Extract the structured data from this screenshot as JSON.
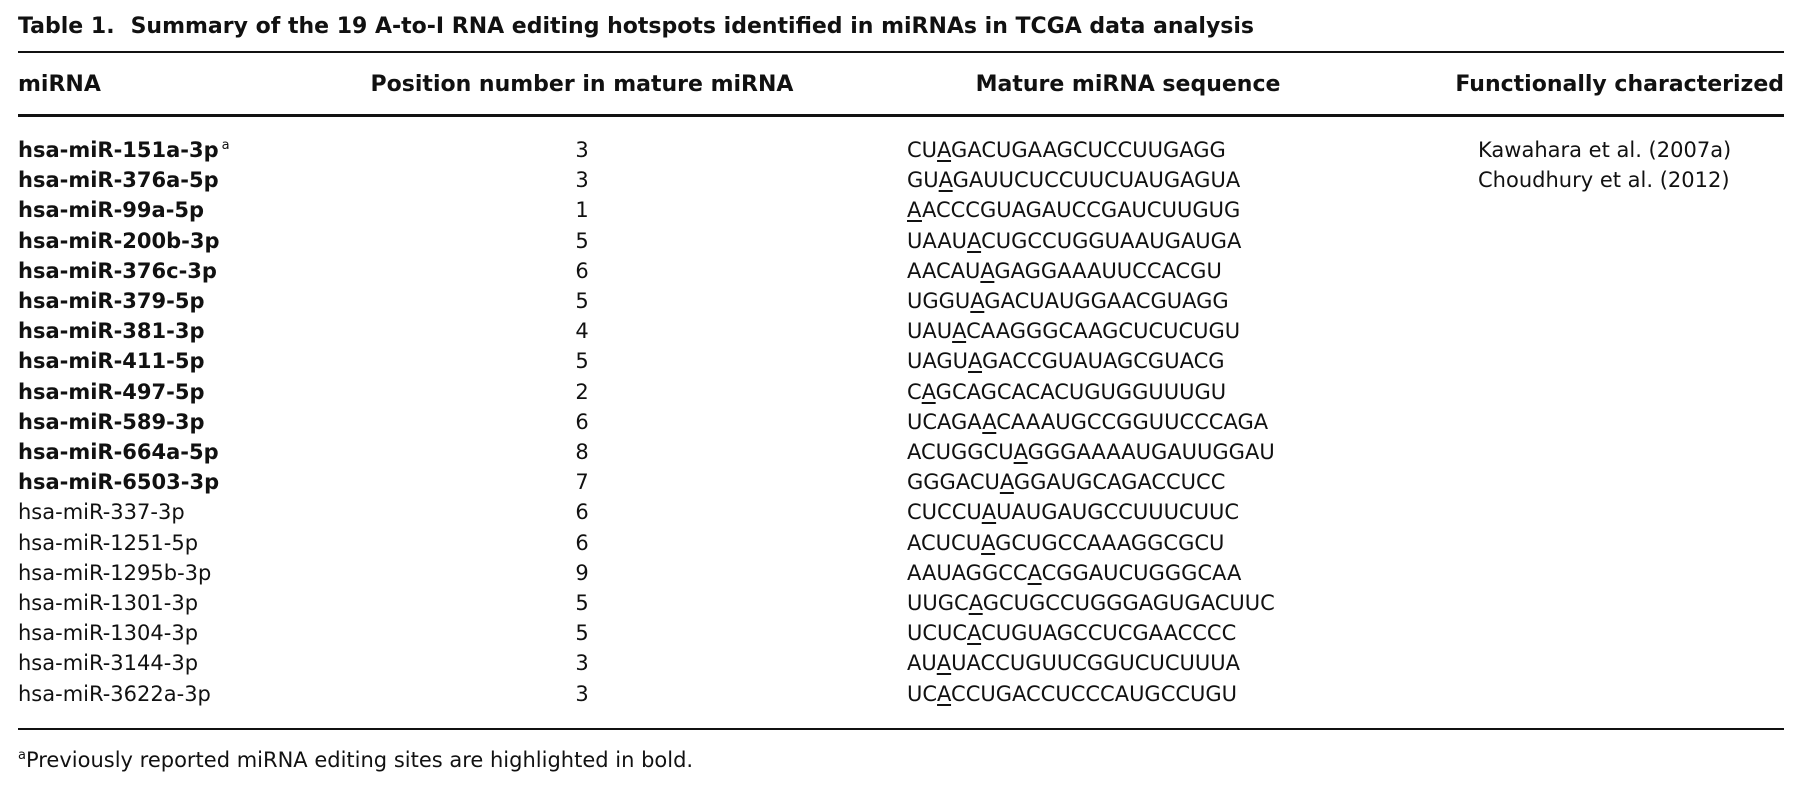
{
  "caption": {
    "label": "Table 1.",
    "title": "Summary of the 19 A-to-I RNA editing hotspots identified in miRNAs in TCGA data analysis"
  },
  "table": {
    "columns": [
      "miRNA",
      "Position number in mature miRNA",
      "Mature miRNA sequence",
      "Functionally characterized"
    ],
    "rows": [
      {
        "mirna": "hsa-miR-151a-3p",
        "note": "a",
        "bold": true,
        "position": 3,
        "sequence": "CUAGACUGAAGCUCCUUGAGG",
        "reference": "Kawahara et al. (2007a)"
      },
      {
        "mirna": "hsa-miR-376a-5p",
        "bold": true,
        "position": 3,
        "sequence": "GUAGAUUCUCCUUCUAUGAGUA",
        "reference": "Choudhury et al. (2012)"
      },
      {
        "mirna": "hsa-miR-99a-5p",
        "bold": true,
        "position": 1,
        "sequence": "AACCCGUAGAUCCGAUCUUGUG"
      },
      {
        "mirna": "hsa-miR-200b-3p",
        "bold": true,
        "position": 5,
        "sequence": "UAAUACUGCCUGGUAAUGAUGA"
      },
      {
        "mirna": "hsa-miR-376c-3p",
        "bold": true,
        "position": 6,
        "sequence": "AACAUAGAGGAAAUUCCACGU"
      },
      {
        "mirna": "hsa-miR-379-5p",
        "bold": true,
        "position": 5,
        "sequence": "UGGUAGACUAUGGAACGUAGG"
      },
      {
        "mirna": "hsa-miR-381-3p",
        "bold": true,
        "position": 4,
        "sequence": "UAUACAAGGGCAAGCUCUCUGU"
      },
      {
        "mirna": "hsa-miR-411-5p",
        "bold": true,
        "position": 5,
        "sequence": "UAGUAGACCGUAUAGCGUACG"
      },
      {
        "mirna": "hsa-miR-497-5p",
        "bold": true,
        "position": 2,
        "sequence": "CAGCAGCACACUGUGGUUUGU"
      },
      {
        "mirna": "hsa-miR-589-3p",
        "bold": true,
        "position": 6,
        "sequence": "UCAGAACAAAUGCCGGUUCCCAGA"
      },
      {
        "mirna": "hsa-miR-664a-5p",
        "bold": true,
        "position": 8,
        "sequence": "ACUGGCUAGGGAAAAUGAUUGGAU"
      },
      {
        "mirna": "hsa-miR-6503-3p",
        "bold": true,
        "position": 7,
        "sequence": "GGGACUAGGAUGCAGACCUCC"
      },
      {
        "mirna": "hsa-miR-337-3p",
        "bold": false,
        "position": 6,
        "sequence": "CUCCUAUAUGAUGCCUUUCUUC"
      },
      {
        "mirna": "hsa-miR-1251-5p",
        "bold": false,
        "position": 6,
        "sequence": "ACUCUAGCUGCCAAAGGCGCU"
      },
      {
        "mirna": "hsa-miR-1295b-3p",
        "bold": false,
        "position": 9,
        "sequence": "AAUAGGCCACGGAUCUGGGCAA"
      },
      {
        "mirna": "hsa-miR-1301-3p",
        "bold": false,
        "position": 5,
        "sequence": "UUGCAGCUGCCUGGGAGUGACUUC"
      },
      {
        "mirna": "hsa-miR-1304-3p",
        "bold": false,
        "position": 5,
        "sequence": "UCUCACUGUAGCCUCGAACCCC"
      },
      {
        "mirna": "hsa-miR-3144-3p",
        "bold": false,
        "position": 3,
        "sequence": "AUAUACCUGUUCGGUCUCUUUA"
      },
      {
        "mirna": "hsa-miR-3622a-3p",
        "bold": false,
        "position": 3,
        "sequence": "UCACCUGACCUCCCAUGCCUGU"
      }
    ]
  },
  "footnote": {
    "mark": "a",
    "text": "Previously reported miRNA editing sites are highlighted in bold."
  }
}
